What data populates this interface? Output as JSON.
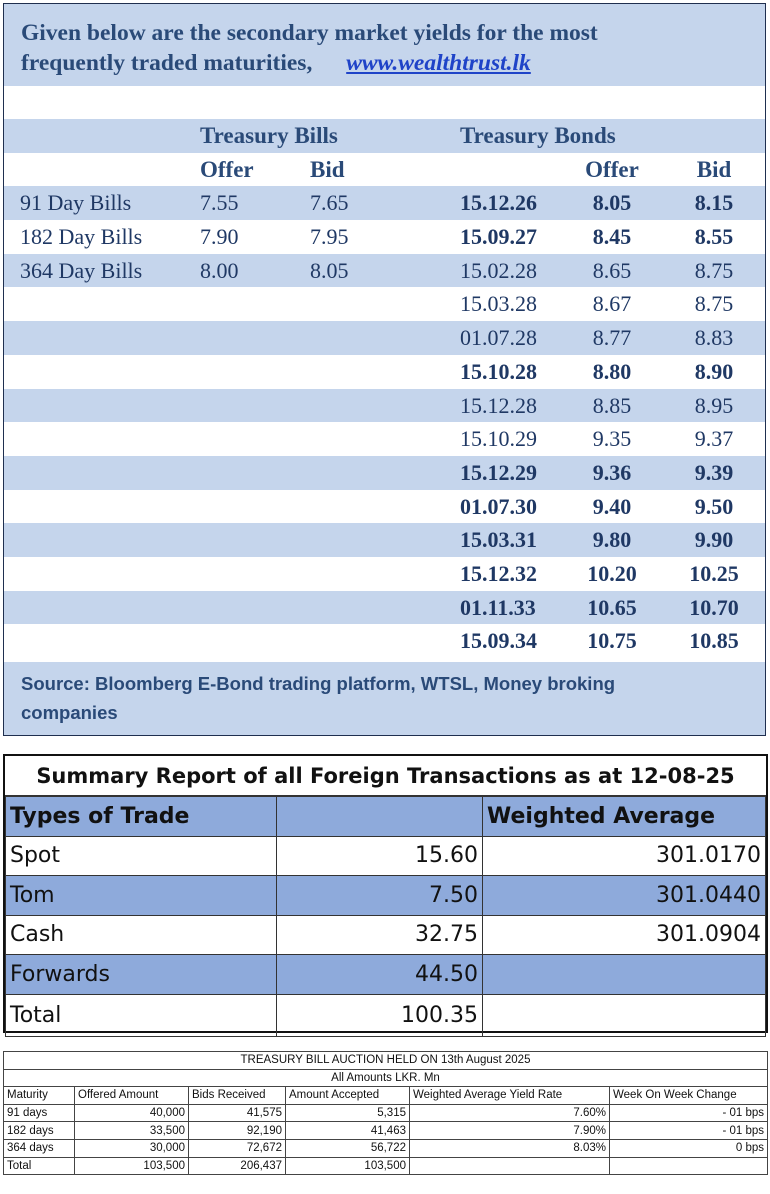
{
  "yields": {
    "intro_line1": "Given below are the secondary market yields for the most",
    "intro_line2": "frequently traded maturities,",
    "website": "www.wealthtrust.lk",
    "bills_title": "Treasury Bills",
    "bonds_title": "Treasury Bonds",
    "offer_label": "Offer",
    "bid_label": "Bid",
    "bills": [
      {
        "name": "91 Day Bills",
        "offer": "7.55",
        "bid": "7.65"
      },
      {
        "name": "182 Day Bills",
        "offer": "7.90",
        "bid": "7.95"
      },
      {
        "name": "364 Day Bills",
        "offer": "8.00",
        "bid": "8.05"
      }
    ],
    "bonds": [
      {
        "maturity": "15.12.26",
        "offer": "8.05",
        "bid": "8.15",
        "bold": true
      },
      {
        "maturity": "15.09.27",
        "offer": "8.45",
        "bid": "8.55",
        "bold": true
      },
      {
        "maturity": "15.02.28",
        "offer": "8.65",
        "bid": "8.75",
        "bold": false
      },
      {
        "maturity": "15.03.28",
        "offer": "8.67",
        "bid": "8.75",
        "bold": false
      },
      {
        "maturity": "01.07.28",
        "offer": "8.77",
        "bid": "8.83",
        "bold": false
      },
      {
        "maturity": "15.10.28",
        "offer": "8.80",
        "bid": "8.90",
        "bold": true
      },
      {
        "maturity": "15.12.28",
        "offer": "8.85",
        "bid": "8.95",
        "bold": false
      },
      {
        "maturity": "15.10.29",
        "offer": "9.35",
        "bid": "9.37",
        "bold": false
      },
      {
        "maturity": "15.12.29",
        "offer": "9.36",
        "bid": "9.39",
        "bold": true
      },
      {
        "maturity": "01.07.30",
        "offer": "9.40",
        "bid": "9.50",
        "bold": true
      },
      {
        "maturity": "15.03.31",
        "offer": "9.80",
        "bid": "9.90",
        "bold": true
      },
      {
        "maturity": "15.12.32",
        "offer": "10.20",
        "bid": "10.25",
        "bold": true
      },
      {
        "maturity": "01.11.33",
        "offer": "10.65",
        "bid": "10.70",
        "bold": true
      },
      {
        "maturity": "15.09.34",
        "offer": "10.75",
        "bid": "10.85",
        "bold": true
      }
    ],
    "source_line1": "Source: Bloomberg E-Bond trading platform, WTSL, Money broking",
    "source_line2": "companies"
  },
  "fx": {
    "title": "Summary Report of all Foreign Transactions as at 12-08-25",
    "header_type": "Types of Trade",
    "header_amount": "",
    "header_avg": "Weighted Average",
    "rows": [
      {
        "type": "Spot",
        "amount": "15.60",
        "avg": "301.0170"
      },
      {
        "type": "Tom",
        "amount": "7.50",
        "avg": "301.0440"
      },
      {
        "type": "Cash",
        "amount": "32.75",
        "avg": "301.0904"
      },
      {
        "type": "Forwards",
        "amount": "44.50",
        "avg": ""
      },
      {
        "type": "Total",
        "amount": "100.35",
        "avg": ""
      }
    ]
  },
  "auction": {
    "title": "TREASURY BILL AUCTION HELD ON 13th August 2025",
    "subtitle": "All Amounts LKR. Mn",
    "headers": [
      "Maturity",
      "Offered Amount",
      "Bids Received",
      "Amount Accepted",
      "Weighted Average Yield Rate",
      "Week On Week Change"
    ],
    "rows": [
      {
        "maturity": "91 days",
        "offered": "40,000",
        "bids": "41,575",
        "accepted": "5,315",
        "yield": "7.60%",
        "change": "- 01 bps"
      },
      {
        "maturity": "182 days",
        "offered": "33,500",
        "bids": "92,190",
        "accepted": "41,463",
        "yield": "7.90%",
        "change": "- 01 bps"
      },
      {
        "maturity": "364 days",
        "offered": "30,000",
        "bids": "72,672",
        "accepted": "56,722",
        "yield": "8.03%",
        "change": "0 bps"
      },
      {
        "maturity": "Total",
        "offered": "103,500",
        "bids": "206,437",
        "accepted": "103,500",
        "yield": "",
        "change": ""
      }
    ]
  }
}
